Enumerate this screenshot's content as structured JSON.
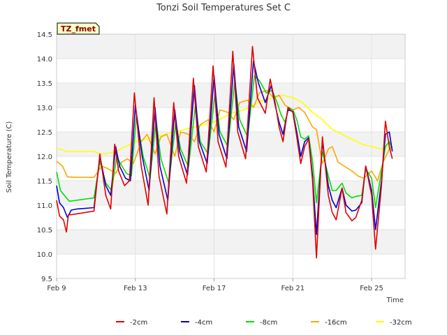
{
  "chart_data": {
    "type": "line",
    "title": "Tonzi Soil Temperatures Set C",
    "xlabel": "Time",
    "ylabel": "Soil Temperature (C)",
    "site_label": "TZ_fmet",
    "xlim": [
      9,
      26.7
    ],
    "ylim": [
      9.5,
      14.5
    ],
    "x_ticks": [
      9,
      13,
      17,
      21,
      25
    ],
    "x_tick_labels": [
      "Feb 9",
      "Feb 13",
      "Feb 17",
      "Feb 21",
      "Feb 25"
    ],
    "y_ticks": [
      9.5,
      10.0,
      10.5,
      11.0,
      11.5,
      12.0,
      12.5,
      13.0,
      13.5,
      14.0,
      14.5
    ],
    "y_tick_labels": [
      "9.5",
      "10.0",
      "10.5",
      "11.0",
      "11.5",
      "12.0",
      "12.5",
      "13.0",
      "13.5",
      "14.0",
      "14.5"
    ],
    "grid": true,
    "legend_position": "bottom",
    "series": [
      {
        "name": "-2cm",
        "color": "#e00000",
        "x": [
          9.0,
          9.15,
          9.35,
          9.5,
          9.6,
          10.0,
          10.9,
          11.2,
          11.5,
          11.75,
          11.95,
          12.15,
          12.45,
          12.7,
          12.95,
          13.3,
          13.65,
          13.95,
          14.2,
          14.6,
          14.95,
          15.2,
          15.6,
          15.95,
          16.2,
          16.6,
          16.95,
          17.2,
          17.6,
          17.95,
          18.2,
          18.6,
          18.95,
          19.2,
          19.6,
          19.85,
          20.1,
          20.3,
          20.5,
          20.75,
          21.0,
          21.2,
          21.4,
          21.6,
          21.8,
          22.0,
          22.2,
          22.5,
          22.8,
          23.0,
          23.2,
          23.5,
          23.7,
          24.0,
          24.2,
          24.5,
          24.7,
          25.0,
          25.2,
          25.5,
          25.7,
          25.9,
          26.05
        ],
        "y": [
          11.1,
          10.78,
          10.7,
          10.45,
          10.8,
          10.82,
          10.88,
          12.05,
          11.2,
          10.92,
          12.25,
          11.7,
          11.4,
          11.5,
          13.3,
          11.8,
          11.0,
          13.2,
          11.6,
          10.82,
          13.1,
          12.0,
          11.45,
          13.6,
          12.2,
          11.68,
          13.85,
          12.3,
          11.78,
          14.15,
          12.5,
          11.95,
          14.25,
          13.2,
          12.88,
          13.58,
          13.1,
          12.6,
          12.3,
          13.0,
          12.9,
          12.4,
          11.85,
          12.2,
          12.35,
          11.5,
          9.92,
          12.4,
          11.2,
          10.85,
          10.7,
          11.35,
          10.85,
          10.68,
          10.75,
          11.1,
          11.8,
          11.2,
          10.1,
          11.4,
          12.72,
          12.2,
          11.95
        ]
      },
      {
        "name": "-4cm",
        "color": "#0000d0",
        "x": [
          9.0,
          9.15,
          9.35,
          9.55,
          9.75,
          10.0,
          10.9,
          11.2,
          11.5,
          11.75,
          12.0,
          12.2,
          12.5,
          12.75,
          13.0,
          13.35,
          13.7,
          14.0,
          14.25,
          14.65,
          15.0,
          15.25,
          15.65,
          16.0,
          16.25,
          16.65,
          17.0,
          17.25,
          17.65,
          18.0,
          18.25,
          18.65,
          19.0,
          19.25,
          19.6,
          19.9,
          20.1,
          20.3,
          20.5,
          20.75,
          21.0,
          21.2,
          21.4,
          21.6,
          21.8,
          22.0,
          22.2,
          22.5,
          22.8,
          23.0,
          23.2,
          23.5,
          23.7,
          24.0,
          24.2,
          24.5,
          24.7,
          25.0,
          25.2,
          25.5,
          25.7,
          25.9,
          26.05
        ],
        "y": [
          11.4,
          11.05,
          10.95,
          10.75,
          10.9,
          10.92,
          10.95,
          12.0,
          11.4,
          11.2,
          12.2,
          11.8,
          11.55,
          11.5,
          13.05,
          12.0,
          11.3,
          13.0,
          11.8,
          11.1,
          12.95,
          12.1,
          11.62,
          13.45,
          12.3,
          11.85,
          13.65,
          12.45,
          11.95,
          13.9,
          12.6,
          12.1,
          13.95,
          13.5,
          13.1,
          13.45,
          13.05,
          12.7,
          12.45,
          12.95,
          12.92,
          12.5,
          12.0,
          12.3,
          12.38,
          11.6,
          10.4,
          12.3,
          11.4,
          11.1,
          10.95,
          11.35,
          11.0,
          10.88,
          10.9,
          11.05,
          11.8,
          11.3,
          10.5,
          11.5,
          12.45,
          12.5,
          12.1
        ]
      },
      {
        "name": "-8cm",
        "color": "#00e000",
        "x": [
          9.0,
          9.2,
          9.5,
          9.65,
          10.0,
          10.9,
          11.2,
          11.5,
          11.8,
          12.05,
          12.25,
          12.55,
          12.8,
          13.05,
          13.4,
          13.75,
          14.05,
          14.3,
          14.7,
          15.05,
          15.3,
          15.7,
          16.05,
          16.3,
          16.7,
          17.05,
          17.3,
          17.7,
          18.05,
          18.3,
          18.7,
          19.05,
          19.3,
          19.65,
          19.95,
          20.2,
          20.4,
          20.6,
          20.8,
          21.0,
          21.2,
          21.4,
          21.6,
          21.8,
          22.0,
          22.2,
          22.5,
          22.8,
          23.0,
          23.2,
          23.5,
          23.7,
          24.0,
          24.2,
          24.5,
          24.7,
          25.0,
          25.2,
          25.5,
          25.7,
          25.9,
          26.05
        ],
        "y": [
          11.68,
          11.3,
          11.15,
          11.08,
          11.1,
          11.15,
          11.9,
          11.45,
          11.3,
          12.0,
          11.85,
          11.65,
          11.6,
          12.8,
          12.0,
          11.55,
          12.75,
          11.95,
          11.45,
          12.7,
          12.15,
          11.78,
          13.05,
          12.3,
          12.05,
          13.3,
          12.5,
          12.2,
          13.55,
          12.75,
          12.4,
          13.65,
          13.55,
          13.3,
          13.35,
          13.1,
          12.85,
          12.7,
          13.0,
          12.95,
          12.75,
          12.4,
          12.35,
          12.42,
          11.9,
          11.05,
          12.1,
          11.6,
          11.3,
          11.3,
          11.45,
          11.25,
          11.15,
          11.18,
          11.2,
          11.75,
          11.55,
          10.95,
          11.7,
          12.2,
          12.3,
          12.15
        ]
      },
      {
        "name": "-16cm",
        "color": "#ffa500",
        "x": [
          9.0,
          9.3,
          9.55,
          10.0,
          10.9,
          11.3,
          11.6,
          12.0,
          12.3,
          12.6,
          12.9,
          13.3,
          13.6,
          14.0,
          14.3,
          14.6,
          15.0,
          15.3,
          15.7,
          16.0,
          16.3,
          16.7,
          17.0,
          17.3,
          17.7,
          18.0,
          18.3,
          18.7,
          19.0,
          19.3,
          19.7,
          20.0,
          20.3,
          20.6,
          21.0,
          21.3,
          21.6,
          22.0,
          22.2,
          22.5,
          22.8,
          23.0,
          23.3,
          23.6,
          24.0,
          24.3,
          24.6,
          25.0,
          25.3,
          25.6,
          25.9,
          26.05
        ],
        "y": [
          11.9,
          11.8,
          11.58,
          11.57,
          11.57,
          11.8,
          11.75,
          11.65,
          11.88,
          11.95,
          11.85,
          12.3,
          12.45,
          12.05,
          12.4,
          12.45,
          12.0,
          12.5,
          12.45,
          12.3,
          12.65,
          12.75,
          12.5,
          12.95,
          12.9,
          12.75,
          13.1,
          13.15,
          13.0,
          13.3,
          13.35,
          13.2,
          13.25,
          13.05,
          12.95,
          13.0,
          12.9,
          12.6,
          12.55,
          11.85,
          12.15,
          12.2,
          11.88,
          11.8,
          11.7,
          11.6,
          11.55,
          11.7,
          11.5,
          11.9,
          12.15,
          12.2
        ]
      },
      {
        "name": "-32cm",
        "color": "#ffff00",
        "x": [
          9.0,
          9.2,
          9.5,
          10.0,
          10.9,
          11.2,
          11.5,
          12.0,
          12.5,
          13.0,
          13.5,
          14.0,
          14.5,
          15.0,
          15.5,
          16.0,
          16.5,
          17.0,
          17.5,
          18.0,
          18.5,
          19.0,
          19.5,
          20.0,
          20.5,
          21.0,
          21.5,
          22.0,
          22.5,
          23.0,
          23.5,
          24.0,
          24.5,
          25.0,
          25.5,
          26.0,
          26.05
        ],
        "y": [
          12.15,
          12.15,
          12.1,
          12.1,
          12.1,
          12.05,
          12.05,
          12.1,
          12.2,
          12.3,
          12.35,
          12.4,
          12.45,
          12.5,
          12.55,
          12.6,
          12.65,
          12.7,
          12.8,
          12.9,
          12.95,
          13.05,
          13.15,
          13.2,
          13.25,
          13.2,
          13.1,
          12.9,
          12.75,
          12.55,
          12.45,
          12.35,
          12.25,
          12.2,
          12.15,
          12.2,
          12.2
        ]
      }
    ]
  }
}
